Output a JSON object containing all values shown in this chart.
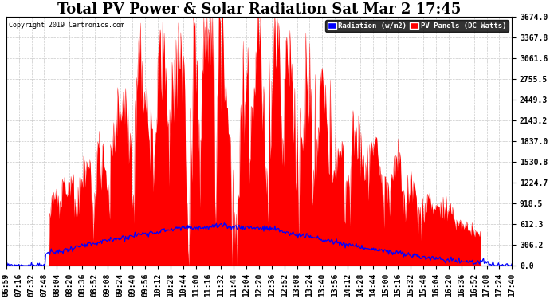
{
  "title": "Total PV Power & Solar Radiation Sat Mar 2 17:45",
  "copyright": "Copyright 2019 Cartronics.com",
  "legend_radiation": "Radiation (w/m2)",
  "legend_pv": "PV Panels (DC Watts)",
  "ylabel_right_ticks": [
    0.0,
    306.2,
    612.3,
    918.5,
    1224.7,
    1530.8,
    1837.0,
    2143.2,
    2449.3,
    2755.5,
    3061.6,
    3367.8,
    3674.0
  ],
  "pv_color": "#FF0000",
  "radiation_color": "#0000FF",
  "bg_color": "#FFFFFF",
  "grid_color": "#BBBBBB",
  "title_fontsize": 13,
  "tick_fontsize": 7,
  "legend_bg_radiation": "#0000FF",
  "legend_bg_pv": "#FF0000",
  "legend_text_color": "#FFFFFF",
  "x_tick_labels": [
    "06:59",
    "07:16",
    "07:32",
    "07:48",
    "08:04",
    "08:20",
    "08:36",
    "08:52",
    "09:08",
    "09:24",
    "09:40",
    "09:56",
    "10:12",
    "10:28",
    "10:44",
    "11:00",
    "11:16",
    "11:32",
    "11:48",
    "12:04",
    "12:20",
    "12:36",
    "12:52",
    "13:08",
    "13:24",
    "13:40",
    "13:56",
    "14:12",
    "14:28",
    "14:44",
    "15:00",
    "15:16",
    "15:32",
    "15:48",
    "16:04",
    "16:20",
    "16:36",
    "16:52",
    "17:08",
    "17:24",
    "17:40"
  ]
}
